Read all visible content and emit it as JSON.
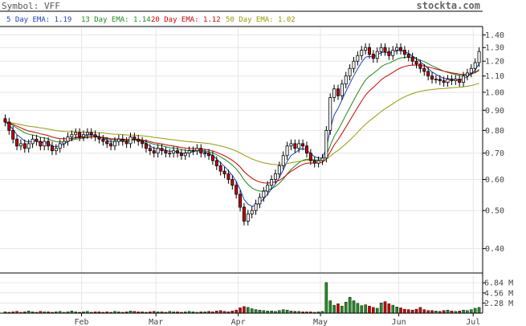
{
  "header": {
    "symbol_label": "Symbol: VFF",
    "brand": "stockta.com"
  },
  "legend": [
    {
      "label": "5 Day EMA: 1.19",
      "color": "#1f3fbf"
    },
    {
      "label": "13 Day EMA: 1.14",
      "color": "#1a8a1a"
    },
    {
      "label": "20 Day EMA: 1.12",
      "color": "#cc0000"
    },
    {
      "label": "50 Day EMA: 1.02",
      "color": "#999900"
    }
  ],
  "colors": {
    "up_candle": "#ffffff",
    "down_candle": "#cc0000",
    "volume_up": "#228b22",
    "volume_down": "#cc0000",
    "grid": "#e6e6e6",
    "frame": "#000000"
  },
  "chart_data": [
    {
      "type": "candlestick",
      "title": "Symbol: VFF",
      "y_scale": "log",
      "ylim": [
        0.35,
        1.45
      ],
      "y_ticks": [
        1.4,
        1.3,
        1.2,
        1.1,
        1.0,
        0.9,
        0.8,
        0.7,
        0.6,
        0.5,
        0.4
      ],
      "y_tick_labels": [
        "1.40",
        "1.30",
        "1.20",
        "1.10",
        "1.00",
        "0.90",
        "0.80",
        "0.70",
        "0.60",
        "0.50",
        "0.40"
      ],
      "x_month_labels": [
        "Feb",
        "Mar",
        "Apr",
        "May",
        "Jun",
        "Jul"
      ],
      "x_month_start_index": [
        20,
        39,
        60,
        81,
        101,
        120
      ],
      "grid": true,
      "closes": [
        0.84,
        0.8,
        0.76,
        0.73,
        0.74,
        0.72,
        0.74,
        0.76,
        0.75,
        0.73,
        0.75,
        0.73,
        0.71,
        0.72,
        0.74,
        0.75,
        0.77,
        0.78,
        0.79,
        0.77,
        0.78,
        0.79,
        0.78,
        0.77,
        0.76,
        0.75,
        0.74,
        0.73,
        0.75,
        0.76,
        0.75,
        0.74,
        0.77,
        0.76,
        0.75,
        0.74,
        0.72,
        0.71,
        0.7,
        0.72,
        0.71,
        0.7,
        0.7,
        0.71,
        0.7,
        0.69,
        0.7,
        0.71,
        0.71,
        0.72,
        0.7,
        0.7,
        0.69,
        0.67,
        0.65,
        0.63,
        0.62,
        0.6,
        0.58,
        0.55,
        0.51,
        0.47,
        0.49,
        0.5,
        0.52,
        0.54,
        0.56,
        0.58,
        0.6,
        0.62,
        0.65,
        0.69,
        0.73,
        0.74,
        0.72,
        0.74,
        0.73,
        0.7,
        0.67,
        0.66,
        0.67,
        0.68,
        0.8,
        0.97,
        1.02,
        0.98,
        1.05,
        1.1,
        1.15,
        1.2,
        1.24,
        1.28,
        1.3,
        1.25,
        1.22,
        1.27,
        1.3,
        1.27,
        1.24,
        1.28,
        1.3,
        1.28,
        1.25,
        1.23,
        1.2,
        1.18,
        1.15,
        1.13,
        1.1,
        1.08,
        1.08,
        1.07,
        1.06,
        1.08,
        1.07,
        1.08,
        1.06,
        1.1,
        1.12,
        1.15,
        1.19,
        1.27
      ],
      "series": [
        {
          "name": "5 Day EMA: 1.19",
          "color": "#1f3fbf"
        },
        {
          "name": "13 Day EMA: 1.14",
          "color": "#1a8a1a"
        },
        {
          "name": "20 Day EMA: 1.12",
          "color": "#cc0000"
        },
        {
          "name": "50 Day EMA: 1.02",
          "color": "#999900"
        }
      ]
    },
    {
      "type": "bar",
      "title": "Volume",
      "ylim": [
        0,
        8.5
      ],
      "y_ticks": [
        2.28,
        4.56,
        6.84
      ],
      "y_tick_labels": [
        "2.28 M",
        "4.56 M",
        "6.84 M"
      ],
      "volumes_m": [
        0.3,
        0.2,
        0.3,
        0.4,
        0.2,
        0.3,
        0.5,
        0.3,
        0.2,
        0.4,
        0.3,
        0.3,
        0.2,
        0.3,
        0.4,
        0.2,
        0.3,
        0.5,
        0.3,
        0.2,
        0.3,
        0.4,
        0.2,
        0.3,
        0.3,
        0.2,
        0.3,
        0.2,
        0.4,
        0.3,
        0.2,
        0.3,
        0.5,
        0.4,
        0.3,
        0.3,
        0.2,
        0.3,
        0.4,
        0.3,
        0.3,
        0.2,
        0.4,
        0.3,
        0.3,
        0.2,
        0.3,
        0.4,
        0.3,
        0.2,
        0.3,
        0.3,
        0.4,
        0.3,
        0.5,
        0.6,
        0.4,
        0.3,
        0.5,
        0.7,
        1.2,
        1.5,
        1.3,
        1.0,
        0.8,
        0.7,
        0.6,
        0.5,
        0.5,
        0.4,
        0.6,
        0.8,
        0.7,
        0.5,
        0.4,
        0.4,
        0.3,
        0.3,
        0.3,
        0.2,
        0.3,
        0.4,
        6.9,
        2.8,
        1.8,
        2.1,
        1.6,
        2.5,
        3.6,
        2.8,
        2.2,
        1.7,
        1.9,
        1.6,
        1.3,
        1.1,
        2.3,
        2.6,
        2.1,
        1.8,
        1.4,
        1.2,
        0.9,
        0.8,
        0.7,
        0.9,
        1.3,
        0.8,
        0.6,
        0.6,
        0.5,
        0.4,
        0.6,
        0.7,
        0.5,
        0.4,
        0.5,
        0.7,
        0.6,
        0.8,
        1.1,
        1.3
      ]
    }
  ]
}
